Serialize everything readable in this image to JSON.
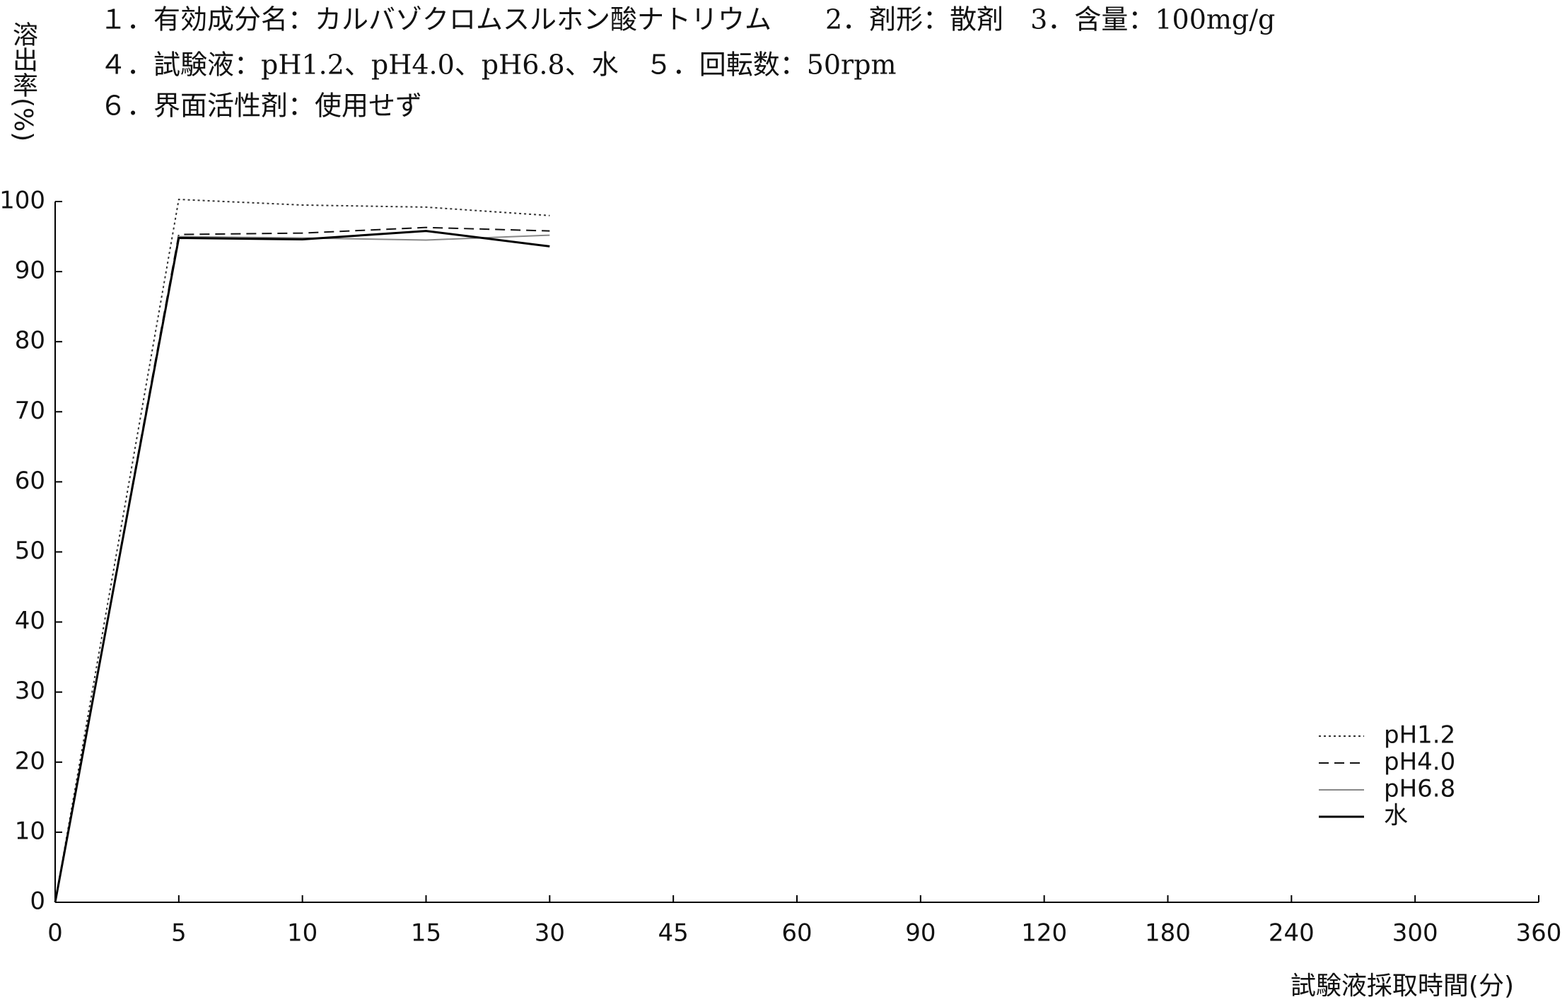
{
  "chart_data": {
    "type": "line",
    "header": [
      "１．有効成分名：カルバゾクロムスルホン酸ナトリウム　　2．剤形：散剤　3．含量：100mg/g",
      "４．試験液：pH1.2、pH4.0、pH6.8、水　５．回転数：50rpm",
      "６．界面活性剤：使用せず"
    ],
    "y_label": "溶出率(%)",
    "x_label": "試験液採取時間(分)",
    "categories": [
      "0",
      "5",
      "10",
      "15",
      "30",
      "45",
      "60",
      "90",
      "120",
      "180",
      "240",
      "300",
      "360"
    ],
    "series": [
      {
        "name": "pH1.2",
        "color": "#333333",
        "dash": "3,4",
        "values": [
          0,
          100.3,
          99.5,
          99.2,
          98.0,
          null,
          null,
          null,
          null,
          null,
          null,
          null,
          null
        ]
      },
      {
        "name": "pH4.0",
        "color": "#111111",
        "dash": "14,8",
        "values": [
          0,
          95.3,
          95.5,
          96.3,
          95.8,
          null,
          null,
          null,
          null,
          null,
          null,
          null,
          null
        ]
      },
      {
        "name": "pH6.8",
        "color": "#888888",
        "dash": "none",
        "values": [
          0,
          95.0,
          94.8,
          94.5,
          95.2,
          null,
          null,
          null,
          null,
          null,
          null,
          null,
          null
        ]
      },
      {
        "name": "水",
        "color": "#000000",
        "dash": "none",
        "values": [
          0,
          94.8,
          94.6,
          95.8,
          93.6,
          null,
          null,
          null,
          null,
          null,
          null,
          null,
          null
        ]
      }
    ],
    "ylim": [
      0,
      100
    ],
    "yticks": [
      0,
      10,
      20,
      30,
      40,
      50,
      60,
      70,
      80,
      90,
      100
    ],
    "grid": false,
    "legend": "lower right"
  }
}
